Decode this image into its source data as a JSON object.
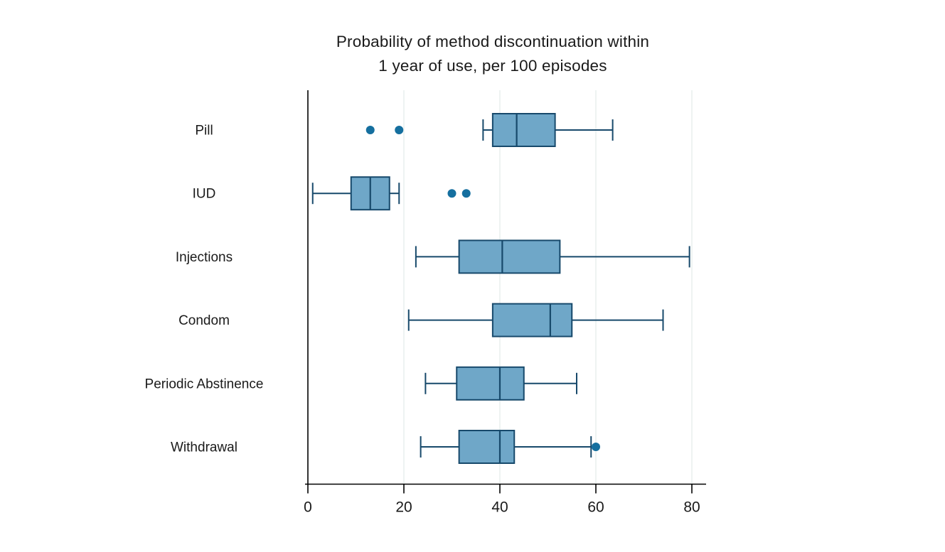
{
  "chart": {
    "title_lines": [
      "Probability of method discontinuation within",
      "1 year of use, per 100 episodes"
    ]
  },
  "chart_data": {
    "type": "boxplot",
    "orientation": "horizontal",
    "title": "Probability of method discontinuation within 1 year of use, per 100 episodes",
    "categories": [
      "Pill",
      "IUD",
      "Injections",
      "Condom",
      "Periodic Abstinence",
      "Withdrawal"
    ],
    "series": [
      {
        "name": "Pill",
        "whisker_low": 36.5,
        "q1": 38.5,
        "median": 43.5,
        "q3": 51.5,
        "whisker_high": 63.5,
        "outliers": [
          13,
          19
        ]
      },
      {
        "name": "IUD",
        "whisker_low": 1,
        "q1": 9,
        "median": 13,
        "q3": 17,
        "whisker_high": 19,
        "outliers": [
          30,
          33
        ]
      },
      {
        "name": "Injections",
        "whisker_low": 22.5,
        "q1": 31.5,
        "median": 40.5,
        "q3": 52.5,
        "whisker_high": 79.5,
        "outliers": []
      },
      {
        "name": "Condom",
        "whisker_low": 21,
        "q1": 38.5,
        "median": 50.5,
        "q3": 55,
        "whisker_high": 74,
        "outliers": []
      },
      {
        "name": "Periodic Abstinence",
        "whisker_low": 24.5,
        "q1": 31,
        "median": 40,
        "q3": 45,
        "whisker_high": 56,
        "outliers": []
      },
      {
        "name": "Withdrawal",
        "whisker_low": 23.5,
        "q1": 31.5,
        "median": 40,
        "q3": 43,
        "whisker_high": 59,
        "outliers": [
          60
        ]
      }
    ],
    "xticks": [
      0,
      20,
      40,
      60,
      80
    ],
    "xlim": [
      0,
      83
    ],
    "xlabel": "",
    "ylabel": "",
    "grid": "vertical-light",
    "legend": "none",
    "colors": {
      "box_fill": "#6fa7c8",
      "box_stroke": "#17496b",
      "outlier": "#156f9f",
      "gridline": "#e9efee",
      "axis": "#000000",
      "text": "#1a1a1a"
    }
  }
}
